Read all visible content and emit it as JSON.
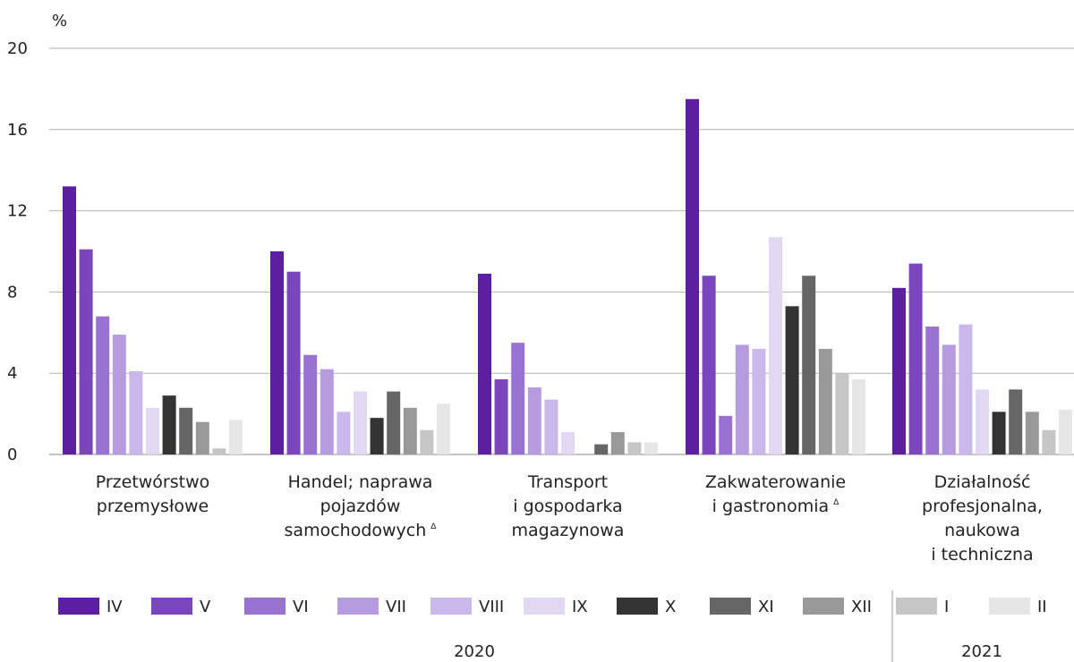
{
  "chart_data": {
    "type": "bar",
    "ylabel": "%",
    "ylim": [
      0,
      20
    ],
    "yticks": [
      0,
      4,
      8,
      12,
      16,
      20
    ],
    "grid": true,
    "legend_placement": "bottom",
    "categories": [
      [
        "Przetwórstwo",
        "przemysłowe"
      ],
      [
        "Handel; naprawa",
        "pojazdów",
        "samochodowych"
      ],
      [
        "Transport",
        "i gospodarka",
        "magazynowa"
      ],
      [
        "Zakwaterowanie",
        "i gastronomia"
      ],
      [
        "Działalność",
        "profesjonalna,",
        "naukowa",
        "i techniczna"
      ]
    ],
    "category_markers": [
      "",
      "Δ",
      "",
      "Δ",
      ""
    ],
    "series": [
      {
        "name": "IV",
        "color": "#5b1fa0",
        "values": [
          13.2,
          10.0,
          8.9,
          17.5,
          8.2
        ]
      },
      {
        "name": "V",
        "color": "#7b45bd",
        "values": [
          10.1,
          9.0,
          3.7,
          8.8,
          9.4
        ]
      },
      {
        "name": "VI",
        "color": "#9a72d2",
        "values": [
          6.8,
          4.9,
          5.5,
          1.9,
          6.3
        ]
      },
      {
        "name": "VII",
        "color": "#b69be0",
        "values": [
          5.9,
          4.2,
          3.3,
          5.4,
          5.4
        ]
      },
      {
        "name": "VIII",
        "color": "#cbb8ea",
        "values": [
          4.1,
          2.1,
          2.7,
          5.2,
          6.4
        ]
      },
      {
        "name": "IX",
        "color": "#e3d8f4",
        "values": [
          2.3,
          3.1,
          1.1,
          10.7,
          3.2
        ]
      },
      {
        "name": "X",
        "color": "#333333",
        "values": [
          2.9,
          1.8,
          0.0,
          7.3,
          2.1
        ]
      },
      {
        "name": "XI",
        "color": "#666666",
        "values": [
          2.3,
          3.1,
          0.5,
          8.8,
          3.2
        ]
      },
      {
        "name": "XII",
        "color": "#999999",
        "values": [
          1.6,
          2.3,
          1.1,
          5.2,
          2.1
        ]
      },
      {
        "name": "I",
        "color": "#c6c6c6",
        "values": [
          0.3,
          1.2,
          0.6,
          4.0,
          1.2
        ]
      },
      {
        "name": "II",
        "color": "#e6e6e6",
        "values": [
          1.7,
          2.5,
          0.6,
          3.7,
          2.2
        ]
      }
    ],
    "legend_groups": [
      {
        "label": "2020",
        "series": [
          "IV",
          "V",
          "VI",
          "VII",
          "VIII",
          "IX",
          "X",
          "XI",
          "XII"
        ]
      },
      {
        "label": "2021",
        "series": [
          "I",
          "II"
        ]
      }
    ]
  }
}
